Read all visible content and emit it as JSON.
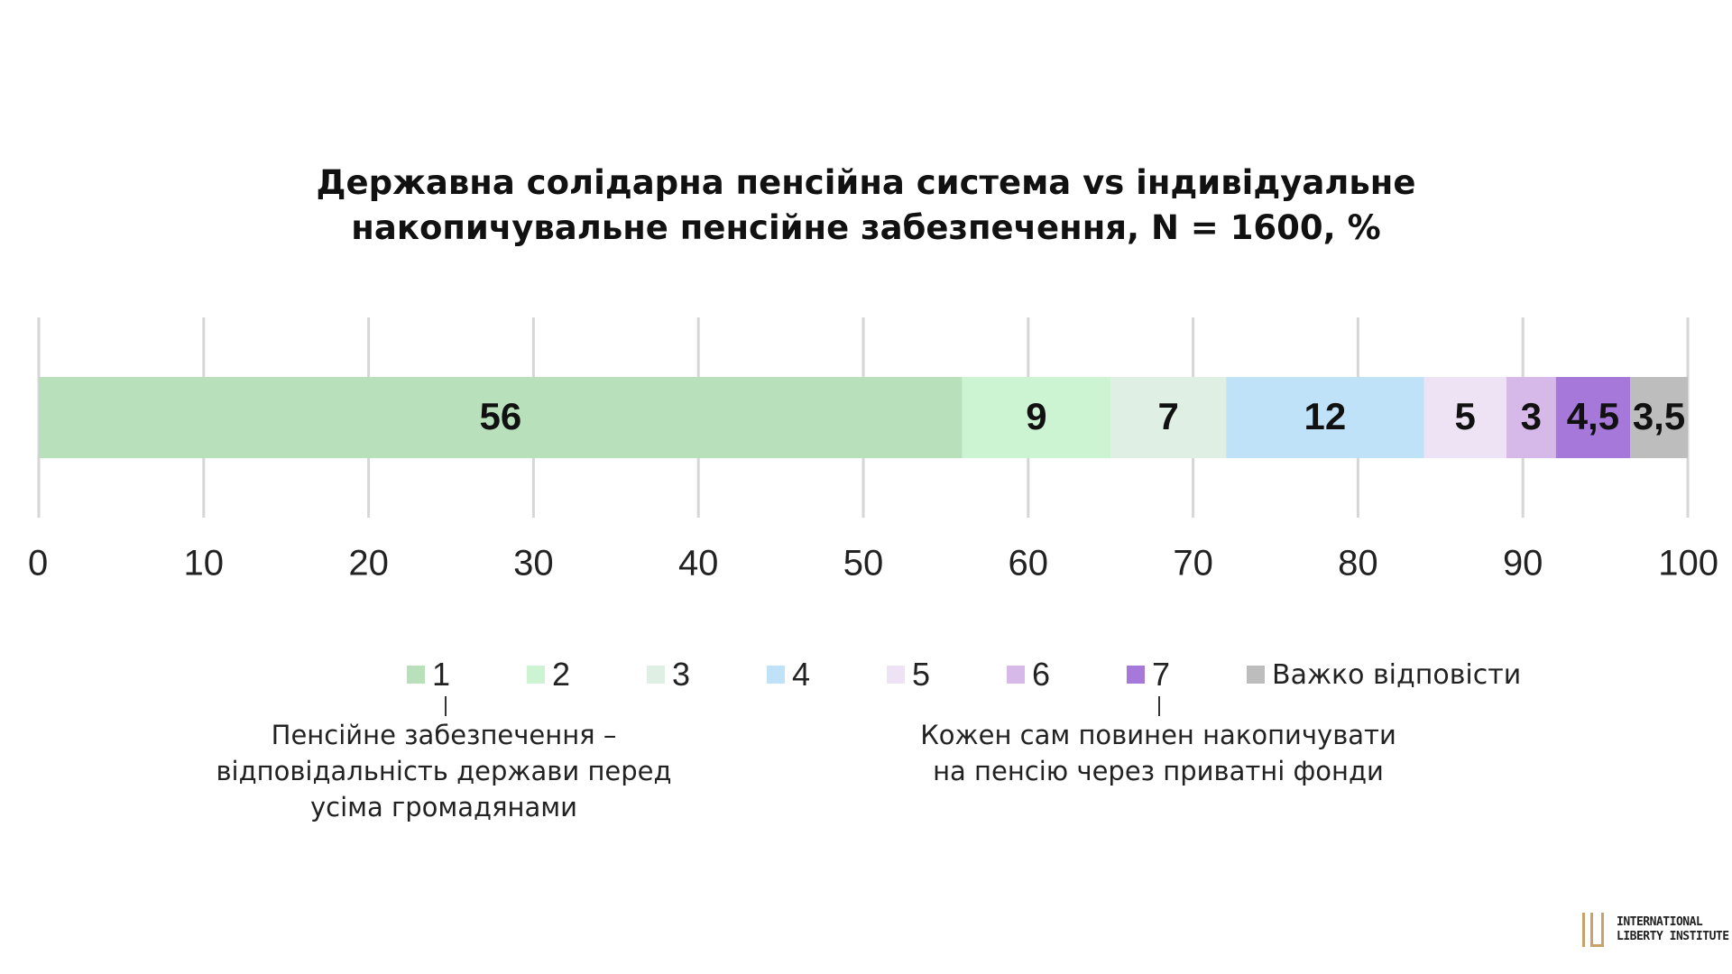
{
  "title": {
    "line1": "Державна солідарна пенсійна система vs індивідуальне",
    "line2": "накопичувальне пенсійне забезпечення, N = 1600, %"
  },
  "chart_data": {
    "type": "bar",
    "orientation": "horizontal",
    "stacked": true,
    "xlim": [
      0,
      100
    ],
    "xticks": [
      0,
      10,
      20,
      30,
      40,
      50,
      60,
      70,
      80,
      90,
      100
    ],
    "grid": true,
    "legend_position": "bottom",
    "series": [
      {
        "name": "1",
        "value": 56,
        "label": "56",
        "color": "#b8e1bb"
      },
      {
        "name": "2",
        "value": 9,
        "label": "9",
        "color": "#ccf3d2"
      },
      {
        "name": "3",
        "value": 7,
        "label": "7",
        "color": "#e0efe3"
      },
      {
        "name": "4",
        "value": 12,
        "label": "12",
        "color": "#bfe2f8"
      },
      {
        "name": "5",
        "value": 5,
        "label": "5",
        "color": "#ede3f4"
      },
      {
        "name": "6",
        "value": 3,
        "label": "3",
        "color": "#d7b9e9"
      },
      {
        "name": "7",
        "value": 4.5,
        "label": "4,5",
        "color": "#a678d9"
      },
      {
        "name": "Важко відповісти",
        "value": 3.5,
        "label": "3,5",
        "color": "#bdbdbd"
      }
    ]
  },
  "scale_notes": {
    "left": [
      "Пенсійне забезпечення –",
      "відповідальність держави перед",
      "усіма громадянами"
    ],
    "right": [
      "Кожен сам повинен накопичувати",
      "на пенсію через приватні фонди"
    ]
  },
  "logo": {
    "line1": "INTERNATIONAL",
    "line2": "LIBERTY INSTITUTE",
    "color": "#c8a268"
  }
}
